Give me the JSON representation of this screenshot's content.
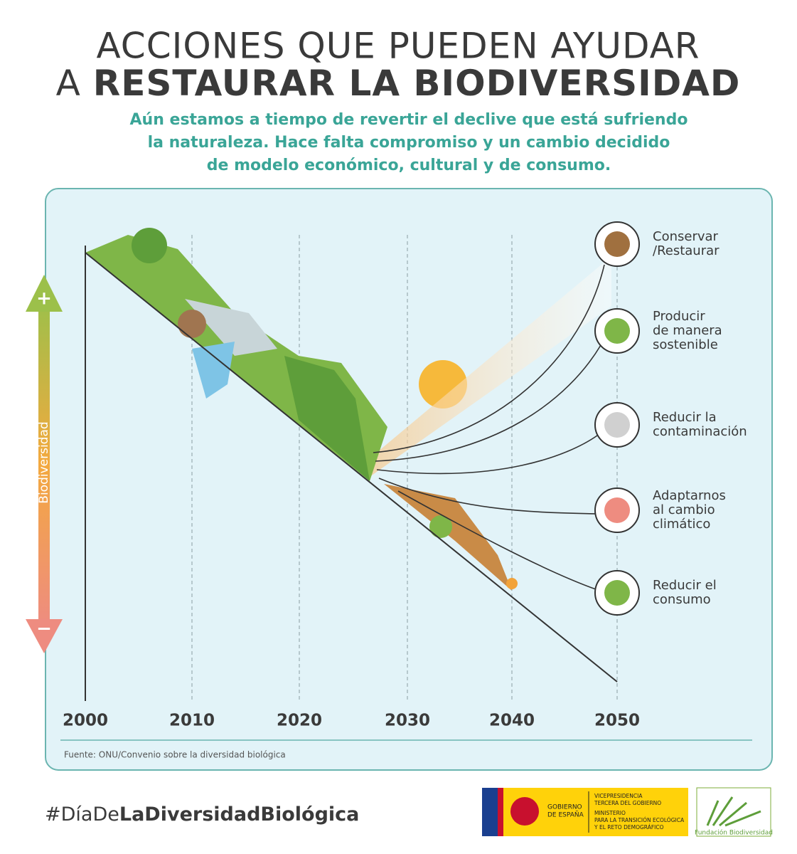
{
  "header": {
    "title_line1": "ACCIONES QUE PUEDEN AYUDAR",
    "title_line2_prefix": "A",
    "title_line2_bold": "RESTAURAR LA BIODIVERSIDAD",
    "subtitle": [
      "Aún estamos a tiempo de revertir el declive que está sufriendo",
      "la naturaleza. Hace falta compromiso y un cambio decidido",
      "de modelo económico, cultural y de consumo."
    ]
  },
  "axis": {
    "label": "Biodiversidad",
    "plus": "+",
    "minus": "−"
  },
  "years": [
    "2000",
    "2010",
    "2020",
    "2030",
    "2040",
    "2050"
  ],
  "actions": [
    {
      "lines": [
        "Conservar",
        "/Restaurar"
      ]
    },
    {
      "lines": [
        "Producir",
        "de manera",
        "sostenible"
      ]
    },
    {
      "lines": [
        "Reducir la",
        "contaminación"
      ]
    },
    {
      "lines": [
        "Adaptarnos",
        "al cambio",
        "climático"
      ]
    },
    {
      "lines": [
        "Reducir el",
        "consumo"
      ]
    }
  ],
  "source": "Fuente: ONU/Convenio sobre la diversidad biológica",
  "footer": {
    "hashtag_light": "#DíaDe",
    "hashtag_bold": "LaDiversidadBiológica",
    "gov": [
      "GOBIERNO",
      "DE ESPAÑA"
    ],
    "ministry": [
      "VICEPRESIDENCIA",
      "TERCERA DEL GOBIERNO",
      "MINISTERIO",
      "PARA LA TRANSICIÓN ECOLÓGICA",
      "Y EL RETO DEMOGRÁFICO"
    ],
    "foundation": "Fundación Biodiversidad"
  }
}
